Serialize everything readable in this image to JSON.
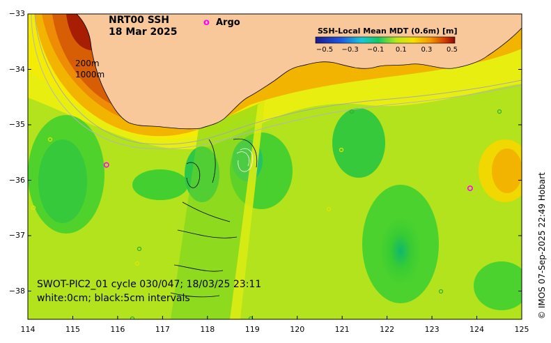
{
  "title": {
    "line1": "NRT00 SSH",
    "line2": "18 Mar 2025"
  },
  "argo_legend": {
    "symbol": "o",
    "label": "Argo"
  },
  "colorbar": {
    "title": "SSH-Local Mean MDT (0.6m) [m]",
    "ticks": [
      "−0.5",
      "−0.3",
      "−0.1",
      "0.1",
      "0.3",
      "0.5"
    ]
  },
  "isobaths": {
    "shallow": "200m",
    "deep": "1000m"
  },
  "y_ticks": [
    "−33",
    "−34",
    "−35",
    "−36",
    "−37",
    "−38"
  ],
  "x_ticks": [
    "114",
    "115",
    "116",
    "117",
    "118",
    "119",
    "120",
    "121",
    "122",
    "123",
    "124",
    "125"
  ],
  "swot_caption": {
    "line1": "SWOT-PIC2_01 cycle 030/047; 18/03/25 23:11",
    "line2": "white:0cm; black:5cm intervals"
  },
  "credit": "© IMOS 07-Sep-2025 22:49 Hobart",
  "colors": {
    "land": "#f8c89a",
    "argo": "#ff00ff",
    "background": "#aee51a"
  },
  "argo_floats": [
    {
      "lon": 115.75,
      "lat": -35.72
    },
    {
      "lon": 123.85,
      "lat": -36.14
    }
  ]
}
